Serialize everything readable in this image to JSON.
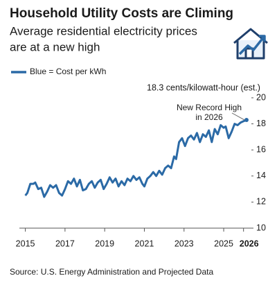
{
  "chart_data": {
    "type": "line",
    "title": "Household Utility Costs are Climing",
    "subtitle": [
      "Average residential electricity prices",
      "are at a new high"
    ],
    "unit_label": "18.3 cents/kilowatt-hour (est.)",
    "annotation": [
      "New Record High",
      "in 2026"
    ],
    "source": "Source: U.S. Energy Administration and Projected Data",
    "series": [
      {
        "name": "Blue = Cost per kWh",
        "color": "#2b6aa6",
        "x": [
          2015.0,
          2015.1,
          2015.25,
          2015.4,
          2015.5,
          2015.65,
          2015.8,
          2015.95,
          2016.1,
          2016.25,
          2016.4,
          2016.55,
          2016.7,
          2016.85,
          2017.0,
          2017.15,
          2017.3,
          2017.45,
          2017.6,
          2017.75,
          2017.9,
          2018.05,
          2018.2,
          2018.35,
          2018.5,
          2018.65,
          2018.8,
          2018.95,
          2019.1,
          2019.25,
          2019.4,
          2019.55,
          2019.7,
          2019.85,
          2020.0,
          2020.15,
          2020.3,
          2020.45,
          2020.6,
          2020.75,
          2020.9,
          2021.0,
          2021.15,
          2021.3,
          2021.45,
          2021.6,
          2021.75,
          2021.9,
          2022.05,
          2022.2,
          2022.35,
          2022.5,
          2022.6,
          2022.75,
          2022.9,
          2023.05,
          2023.2,
          2023.35,
          2023.5,
          2023.65,
          2023.8,
          2023.95,
          2024.1,
          2024.25,
          2024.4,
          2024.55,
          2024.7,
          2024.85,
          2025.0,
          2025.1,
          2025.25,
          2025.4,
          2025.55,
          2025.7,
          2025.85,
          2026.0,
          2026.15
        ],
        "values": [
          12.5,
          12.7,
          13.4,
          13.4,
          13.5,
          13.0,
          13.1,
          12.4,
          12.8,
          13.3,
          13.1,
          13.3,
          12.7,
          12.5,
          13.0,
          13.6,
          13.4,
          13.8,
          13.2,
          13.7,
          12.9,
          13.0,
          13.4,
          13.6,
          13.1,
          13.5,
          13.7,
          13.0,
          13.4,
          13.9,
          13.5,
          13.8,
          13.2,
          13.6,
          13.3,
          13.8,
          13.6,
          14.0,
          13.7,
          13.9,
          13.4,
          13.2,
          13.8,
          14.0,
          14.3,
          14.0,
          14.4,
          14.1,
          14.6,
          14.8,
          14.6,
          15.5,
          15.3,
          16.6,
          16.9,
          16.3,
          16.9,
          17.1,
          16.8,
          17.3,
          16.6,
          17.2,
          17.0,
          17.5,
          16.6,
          17.6,
          17.2,
          17.9,
          17.7,
          17.8,
          16.9,
          17.4,
          18.0,
          17.9,
          18.1,
          18.2,
          18.3
        ]
      }
    ],
    "xlim": [
      2014.7,
      2026.5
    ],
    "xticks": [
      2015,
      2017,
      2019,
      2021,
      2023,
      2025,
      2026
    ],
    "ylim": [
      10,
      20
    ],
    "yticks": [
      10,
      12,
      14,
      16,
      18,
      20
    ]
  }
}
